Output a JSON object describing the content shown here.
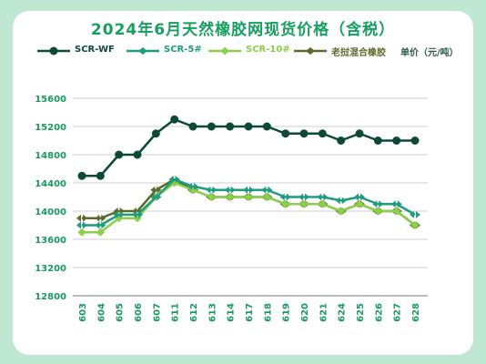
{
  "chart_data": {
    "type": "line",
    "title": "2024年6月天然橡胶网现货价格（含税）",
    "categories": [
      "603",
      "604",
      "605",
      "606",
      "607",
      "611",
      "612",
      "613",
      "614",
      "617",
      "618",
      "619",
      "620",
      "621",
      "624",
      "625",
      "626",
      "627",
      "628"
    ],
    "ylim": [
      12800,
      15600
    ],
    "yticks": [
      12800,
      13200,
      13600,
      14000,
      14400,
      14800,
      15200,
      15600
    ],
    "grid": true,
    "legend_position": "top",
    "unit": "单价（元/吨）",
    "series": [
      {
        "name": "SCR-WF",
        "color": "#0d4a35",
        "values": [
          14500,
          14500,
          14800,
          14800,
          15100,
          15300,
          15200,
          15200,
          15200,
          15200,
          15200,
          15100,
          15100,
          15100,
          15000,
          15100,
          15000,
          15000,
          15000
        ]
      },
      {
        "name": "SCR-5#",
        "color": "#1f9c80",
        "values": [
          13800,
          13800,
          13950,
          13950,
          14200,
          14450,
          14350,
          14300,
          14300,
          14300,
          14300,
          14200,
          14200,
          14200,
          14150,
          14200,
          14100,
          14100,
          13950
        ]
      },
      {
        "name": "SCR-10#",
        "color": "#8ccf48",
        "values": [
          13700,
          13700,
          13900,
          13900,
          14200,
          14400,
          14300,
          14200,
          14200,
          14200,
          14200,
          14100,
          14100,
          14100,
          14000,
          14100,
          14000,
          14000,
          13800
        ]
      },
      {
        "name": "老挝混合橡胶",
        "color": "#5a6b2c",
        "values": [
          13900,
          13900,
          14000,
          14000,
          14300,
          14450,
          14300,
          14200,
          14200,
          14200,
          14200,
          14100,
          14100,
          14100,
          14000,
          14100,
          14000,
          14000,
          13800
        ]
      }
    ]
  },
  "colors": {
    "background": "#bfe8d2",
    "card": "#ffffff",
    "title": "#15a060",
    "grid": "#cfcfcf"
  }
}
